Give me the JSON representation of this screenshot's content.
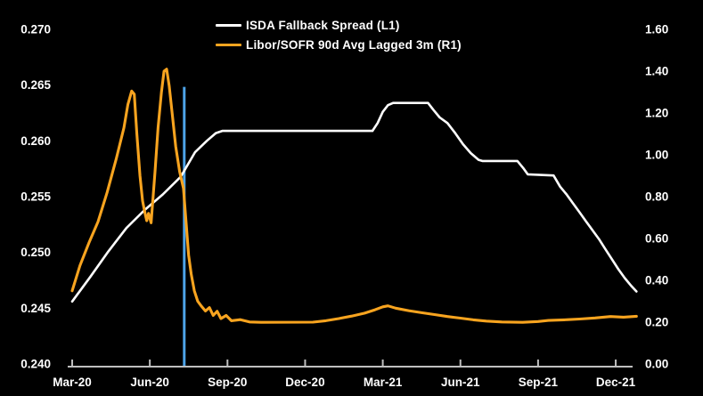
{
  "colors": {
    "background": "#000000",
    "axis": "#bfbfbf",
    "tick_label": "#ffffff",
    "isda_line": "#ffffff",
    "libor_line": "#f8a41f",
    "marker_line": "#4da3e8"
  },
  "legend": {
    "items": [
      {
        "id": "isda",
        "label": "ISDA Fallback Spread (L1)",
        "color": "#ffffff"
      },
      {
        "id": "libor",
        "label": "Libor/SOFR 90d Avg Lagged 3m (R1)",
        "color": "#f8a41f"
      }
    ]
  },
  "chart_data": {
    "type": "line",
    "title": "",
    "grid": false,
    "legend_position": "top-center",
    "x_axis": {
      "unit": "months since Mar-2020",
      "tick_labels": [
        "Mar-20",
        "Jun-20",
        "Sep-20",
        "Dec-20",
        "Mar-21",
        "Jun-21",
        "Sep-21",
        "Dec-21"
      ],
      "tick_months": [
        0,
        3,
        6,
        9,
        12,
        15,
        18,
        21
      ],
      "range_months": [
        0,
        21.8
      ]
    },
    "left_axis": {
      "name": "L1",
      "tick_labels": [
        "0.270",
        "0.265",
        "0.260",
        "0.255",
        "0.250",
        "0.245",
        "0.240"
      ],
      "tick_values": [
        0.27,
        0.265,
        0.26,
        0.255,
        0.25,
        0.245,
        0.24
      ],
      "range": [
        0.24,
        0.27
      ]
    },
    "right_axis": {
      "name": "R1",
      "tick_labels": [
        "1.60",
        "1.40",
        "1.20",
        "1.00",
        "0.80",
        "0.60",
        "0.40",
        "0.20",
        "0.00"
      ],
      "tick_values": [
        1.6,
        1.4,
        1.2,
        1.0,
        0.8,
        0.6,
        0.4,
        0.2,
        0.0
      ],
      "range": [
        0.0,
        1.6
      ]
    },
    "annotations": [
      {
        "type": "vline",
        "month": 4.33,
        "top_value_right": 1.325,
        "color": "#4da3e8"
      }
    ],
    "series": [
      {
        "name": "ISDA Fallback Spread (L1)",
        "axis": "left",
        "color": "#ffffff",
        "points": [
          [
            0,
            0.2456
          ],
          [
            0.7,
            0.2478
          ],
          [
            1.4,
            0.2501
          ],
          [
            2.1,
            0.2522
          ],
          [
            2.8,
            0.2538
          ],
          [
            3.5,
            0.2552
          ],
          [
            4.2,
            0.2568
          ],
          [
            4.75,
            0.259
          ],
          [
            5.2,
            0.26
          ],
          [
            5.55,
            0.2607
          ],
          [
            5.8,
            0.2609
          ],
          [
            11.6,
            0.2609
          ],
          [
            11.8,
            0.2616
          ],
          [
            12.0,
            0.2626
          ],
          [
            12.2,
            0.2632
          ],
          [
            12.4,
            0.2634
          ],
          [
            13.75,
            0.2634
          ],
          [
            13.95,
            0.2628
          ],
          [
            14.2,
            0.2621
          ],
          [
            14.5,
            0.2616
          ],
          [
            14.8,
            0.2607
          ],
          [
            15.1,
            0.2597
          ],
          [
            15.4,
            0.2589
          ],
          [
            15.7,
            0.2583
          ],
          [
            15.85,
            0.2582
          ],
          [
            17.2,
            0.2582
          ],
          [
            17.45,
            0.2575
          ],
          [
            17.6,
            0.257
          ],
          [
            18.6,
            0.2569
          ],
          [
            18.85,
            0.2559
          ],
          [
            19.1,
            0.2552
          ],
          [
            19.35,
            0.2544
          ],
          [
            19.6,
            0.2536
          ],
          [
            19.85,
            0.2528
          ],
          [
            20.1,
            0.252
          ],
          [
            20.35,
            0.2512
          ],
          [
            20.6,
            0.2503
          ],
          [
            20.85,
            0.2494
          ],
          [
            21.1,
            0.2485
          ],
          [
            21.35,
            0.2477
          ],
          [
            21.6,
            0.247
          ],
          [
            21.8,
            0.2465
          ]
        ]
      },
      {
        "name": "Libor/SOFR 90d Avg Lagged 3m (R1)",
        "axis": "right",
        "color": "#f8a41f",
        "points": [
          [
            0,
            0.35
          ],
          [
            0.3,
            0.47
          ],
          [
            0.65,
            0.58
          ],
          [
            1.0,
            0.68
          ],
          [
            1.35,
            0.82
          ],
          [
            1.7,
            0.98
          ],
          [
            2.0,
            1.13
          ],
          [
            2.15,
            1.24
          ],
          [
            2.3,
            1.305
          ],
          [
            2.4,
            1.29
          ],
          [
            2.5,
            1.1
          ],
          [
            2.62,
            0.9
          ],
          [
            2.72,
            0.78
          ],
          [
            2.8,
            0.73
          ],
          [
            2.88,
            0.685
          ],
          [
            2.95,
            0.72
          ],
          [
            3.05,
            0.675
          ],
          [
            3.2,
            0.92
          ],
          [
            3.32,
            1.13
          ],
          [
            3.45,
            1.3
          ],
          [
            3.55,
            1.4
          ],
          [
            3.65,
            1.41
          ],
          [
            3.75,
            1.33
          ],
          [
            3.88,
            1.18
          ],
          [
            4.0,
            1.04
          ],
          [
            4.15,
            0.92
          ],
          [
            4.3,
            0.84
          ],
          [
            4.4,
            0.68
          ],
          [
            4.5,
            0.52
          ],
          [
            4.6,
            0.43
          ],
          [
            4.72,
            0.35
          ],
          [
            4.85,
            0.3
          ],
          [
            5.0,
            0.275
          ],
          [
            5.15,
            0.253
          ],
          [
            5.3,
            0.27
          ],
          [
            5.45,
            0.232
          ],
          [
            5.6,
            0.252
          ],
          [
            5.75,
            0.217
          ],
          [
            5.95,
            0.232
          ],
          [
            6.15,
            0.207
          ],
          [
            6.5,
            0.212
          ],
          [
            6.85,
            0.201
          ],
          [
            7.3,
            0.199
          ],
          [
            9.3,
            0.2
          ],
          [
            9.8,
            0.207
          ],
          [
            10.3,
            0.217
          ],
          [
            10.8,
            0.229
          ],
          [
            11.3,
            0.243
          ],
          [
            11.7,
            0.259
          ],
          [
            12.0,
            0.273
          ],
          [
            12.2,
            0.278
          ],
          [
            12.5,
            0.267
          ],
          [
            13.0,
            0.255
          ],
          [
            13.5,
            0.245
          ],
          [
            14.0,
            0.236
          ],
          [
            14.5,
            0.227
          ],
          [
            15.0,
            0.219
          ],
          [
            15.5,
            0.211
          ],
          [
            16.0,
            0.205
          ],
          [
            16.6,
            0.201
          ],
          [
            17.4,
            0.199
          ],
          [
            18.0,
            0.203
          ],
          [
            18.4,
            0.208
          ],
          [
            19.0,
            0.211
          ],
          [
            19.6,
            0.215
          ],
          [
            20.2,
            0.22
          ],
          [
            20.8,
            0.227
          ],
          [
            21.3,
            0.224
          ],
          [
            21.8,
            0.228
          ]
        ]
      }
    ]
  }
}
